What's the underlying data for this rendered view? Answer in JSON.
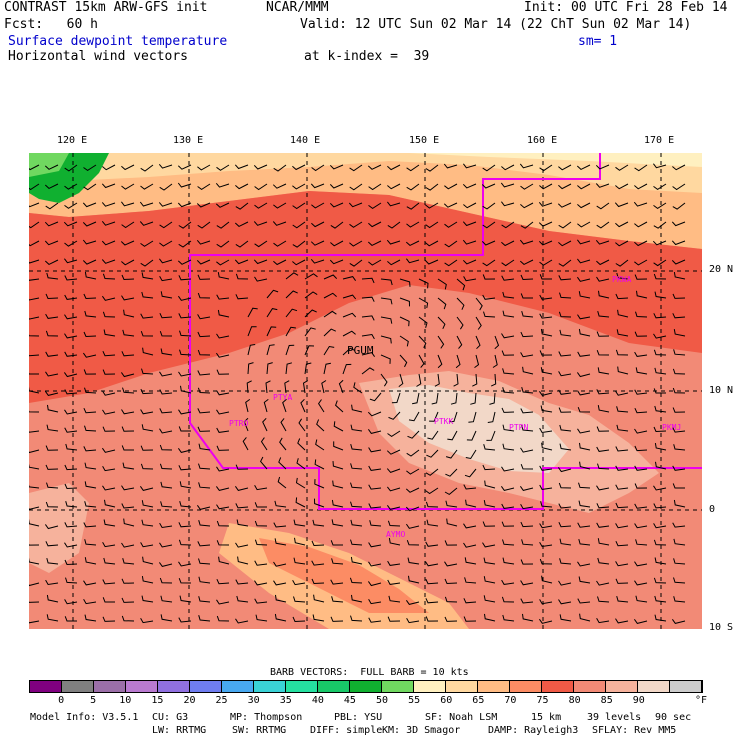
{
  "header": {
    "title": "CONTRAST 15km ARW-GFS init",
    "org": "NCAR/MMM",
    "init": "Init: 00 UTC Fri 28 Feb 14",
    "fcst": "Fcst:   60 h",
    "valid": "Valid: 12 UTC Sun 02 Mar 14 (22 ChT Sun 02 Mar 14)",
    "field1": "Surface dewpoint temperature",
    "smoothing": "sm= 1",
    "field2": "Horizontal wind vectors",
    "level": "at k-index =  39"
  },
  "map": {
    "lon_labels": [
      "120 E",
      "130 E",
      "140 E",
      "150 E",
      "160 E",
      "170 E"
    ],
    "lat_labels": [
      "20 N",
      "10 N",
      "0",
      "10 S"
    ],
    "stations": [
      "PGUM",
      "PTYA",
      "PTRO",
      "PTKK",
      "PTPN",
      "PKMJ",
      "PKWA",
      "AYMO"
    ]
  },
  "legend": {
    "barb_note": "BARB VECTORS:  FULL BARB = 10 kts",
    "ticks": [
      "0",
      "5",
      "10",
      "15",
      "20",
      "25",
      "30",
      "35",
      "40",
      "45",
      "50",
      "55",
      "60",
      "65",
      "70",
      "75",
      "80",
      "85",
      "90"
    ],
    "unit": "°F",
    "colors": [
      "#800080",
      "#808080",
      "#9b6fa8",
      "#b97ad0",
      "#9070e0",
      "#6f7df0",
      "#48a8f0",
      "#3ad2d6",
      "#25e0a0",
      "#18c868",
      "#10b030",
      "#70d860",
      "#fff0c0",
      "#ffd8a0",
      "#ffbc84",
      "#fc8c64",
      "#f05a46",
      "#f28a76",
      "#f6b29c",
      "#f2d8c8",
      "#cccccc"
    ]
  },
  "footer": {
    "line1": [
      "Model Info: V3.5.1",
      "CU: G3",
      "MP: Thompson",
      "PBL: YSU",
      "SF: Noah LSM",
      "15 km",
      "39 levels",
      "90 sec"
    ],
    "line2": [
      "LW: RRTMG",
      "SW: RRTMG",
      "DIFF: simple",
      "KM: 3D Smagor",
      "DAMP: Rayleigh3",
      "SFLAY: Rev MM5"
    ]
  }
}
